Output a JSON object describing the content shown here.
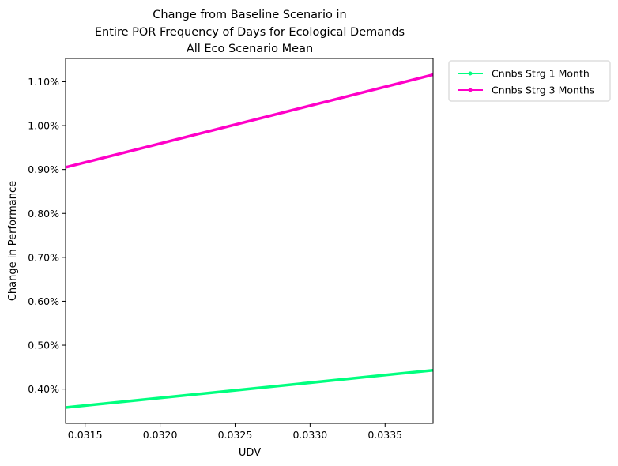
{
  "chart_data": {
    "type": "line",
    "title_lines": [
      "Change from Baseline Scenario in",
      "Entire POR Frequency of Days for Ecological Demands",
      "All Eco Scenario Mean"
    ],
    "xlabel": "UDV",
    "ylabel": "Change in Performance",
    "xlim": [
      0.03137,
      0.03382
    ],
    "ylim": [
      0.322,
      1.153
    ],
    "x_ticks": [
      0.0315,
      0.032,
      0.0325,
      0.033,
      0.0335
    ],
    "x_tick_labels": [
      "0.0315",
      "0.0320",
      "0.0325",
      "0.0330",
      "0.0335"
    ],
    "y_ticks": [
      0.4,
      0.5,
      0.6,
      0.7,
      0.8,
      0.9,
      1.0,
      1.1
    ],
    "y_tick_labels": [
      "0.40%",
      "0.50%",
      "0.60%",
      "0.70%",
      "0.80%",
      "0.90%",
      "1.00%",
      "1.10%"
    ],
    "grid": false,
    "legend_position": "outside-top-right",
    "series": [
      {
        "name": "Cnnbs Strg 1 Month",
        "color": "#00ff7f",
        "x": [
          0.03137,
          0.03382
        ],
        "y": [
          0.358,
          0.443
        ]
      },
      {
        "name": "Cnnbs Strg 3 Months",
        "color": "#ff00c8",
        "x": [
          0.03137,
          0.03382
        ],
        "y": [
          0.905,
          1.116
        ]
      }
    ]
  }
}
